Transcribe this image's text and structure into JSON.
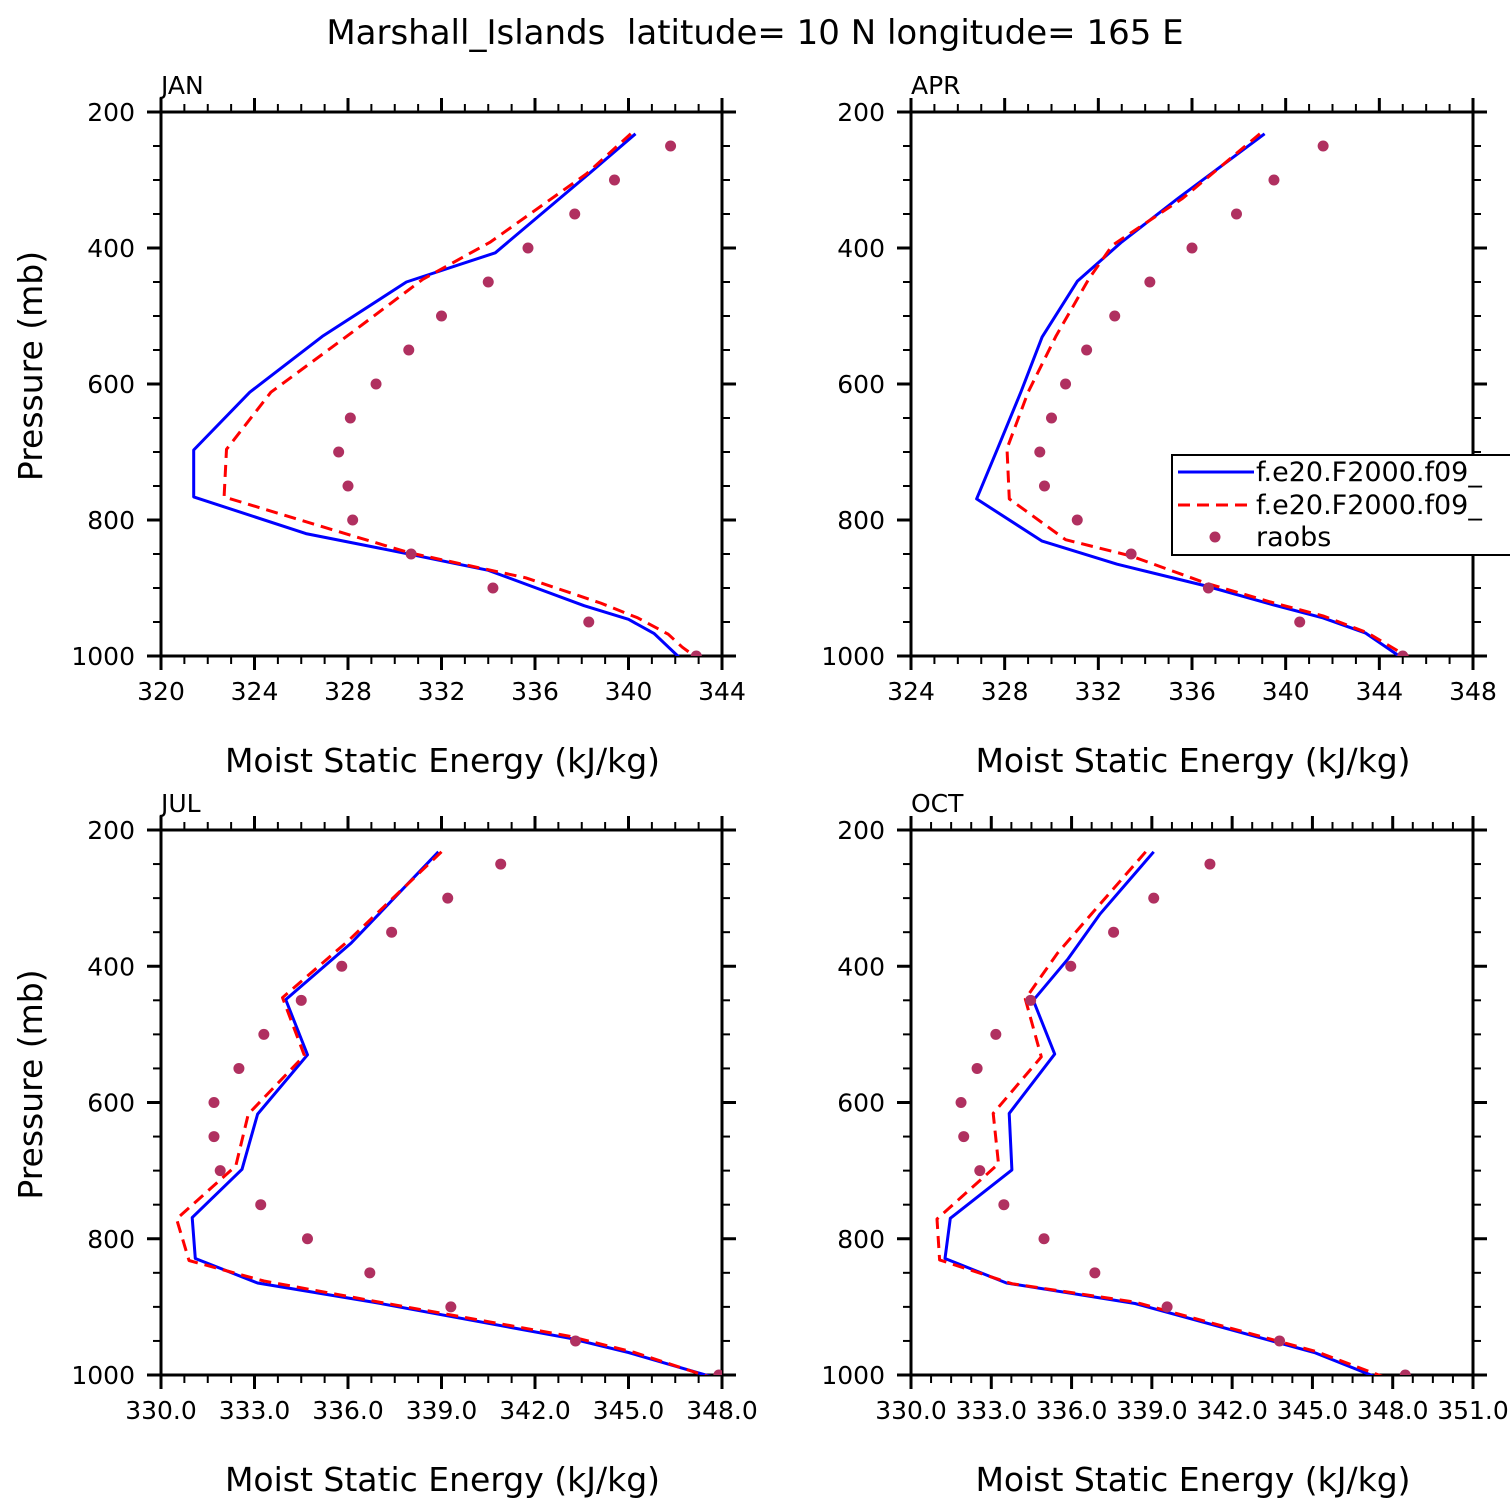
{
  "figure_title": "Marshall_Islands  latitude= 10 N longitude= 165 E",
  "colors": {
    "model1": "#0000ff",
    "model2": "#ff0000",
    "raobs": "#b03060",
    "axis": "#000000"
  },
  "legend": {
    "entries": [
      {
        "label": "f.e20.F2000.f09_",
        "style": "solid-line",
        "color": "#0000ff"
      },
      {
        "label": "f.e20.F2000.f09_",
        "style": "dashed-line",
        "color": "#ff0000"
      },
      {
        "label": "raobs",
        "style": "dot",
        "color": "#b03060"
      }
    ]
  },
  "chart_data": [
    {
      "type": "line",
      "panel_label": "JAN",
      "xlabel": "Moist Static Energy (kJ/kg)",
      "ylabel": "Pressure (mb)",
      "xlim": [
        320,
        344
      ],
      "xticks": [
        320,
        324,
        328,
        332,
        336,
        340,
        344
      ],
      "xtick_labels": [
        "320",
        "324",
        "328",
        "332",
        "336",
        "340",
        "344"
      ],
      "ylim": [
        200,
        1000
      ],
      "yticks": [
        200,
        400,
        600,
        800,
        1000
      ],
      "y_inverted": true,
      "series": [
        {
          "id": "model1",
          "style": "solid",
          "x": [
            340.3,
            338.3,
            334.3,
            330.5,
            326.9,
            323.8,
            321.4,
            321.4,
            326.2,
            330.6,
            334.0,
            338.1,
            340.0,
            341.1,
            342.2
          ],
          "y": [
            232,
            291,
            407,
            450,
            530,
            612,
            697,
            766,
            820,
            850,
            874,
            926,
            946,
            967,
            1003
          ]
        },
        {
          "id": "model2",
          "style": "dashed",
          "x": [
            340.1,
            338.2,
            334.1,
            331.2,
            327.9,
            324.7,
            322.8,
            322.7,
            327.2,
            330.6,
            335.6,
            338.8,
            340.4,
            341.7,
            342.3,
            342.9
          ],
          "y": [
            232,
            291,
            391,
            446,
            531,
            612,
            696,
            766,
            813,
            848,
            885,
            922,
            944,
            968,
            987,
            1002
          ]
        },
        {
          "id": "raobs",
          "style": "dots",
          "x": [
            341.8,
            339.4,
            337.7,
            335.7,
            334.0,
            332.0,
            330.6,
            329.2,
            328.1,
            327.6,
            328.0,
            328.2,
            330.7,
            334.2,
            338.3,
            342.9
          ],
          "y": [
            250,
            300,
            350,
            400,
            450,
            500,
            550,
            600,
            650,
            700,
            750,
            800,
            850,
            900,
            950,
            1000
          ]
        }
      ]
    },
    {
      "type": "line",
      "panel_label": "APR",
      "xlabel": "Moist Static Energy (kJ/kg)",
      "ylabel": "",
      "xlim": [
        324,
        348
      ],
      "xticks": [
        324,
        328,
        332,
        336,
        340,
        344,
        348
      ],
      "xtick_labels": [
        "324",
        "328",
        "332",
        "336",
        "340",
        "344",
        "348"
      ],
      "ylim": [
        200,
        1000
      ],
      "yticks": [
        200,
        400,
        600,
        800,
        1000
      ],
      "y_inverted": true,
      "series": [
        {
          "id": "model1",
          "style": "solid",
          "x": [
            339.1,
            335.4,
            333.0,
            331.1,
            329.6,
            328.7,
            327.7,
            326.8,
            329.6,
            332.8,
            336.6,
            339.5,
            341.6,
            343.4,
            345.1
          ],
          "y": [
            232,
            327,
            391,
            449,
            531,
            611,
            695,
            769,
            831,
            865,
            897,
            925,
            944,
            966,
            1006
          ]
        },
        {
          "id": "model2",
          "style": "dashed",
          "x": [
            338.9,
            335.6,
            332.6,
            331.6,
            330.2,
            329.0,
            328.1,
            328.2,
            330.6,
            333.4,
            336.6,
            339.5,
            341.6,
            343.5,
            345.3
          ],
          "y": [
            232,
            327,
            396,
            445,
            529,
            612,
            695,
            769,
            829,
            853,
            893,
            922,
            941,
            966,
            1003
          ]
        },
        {
          "id": "raobs",
          "style": "dots",
          "x": [
            341.6,
            339.5,
            337.9,
            336.0,
            334.2,
            332.7,
            331.5,
            330.6,
            330.0,
            329.5,
            329.7,
            331.1,
            333.4,
            336.7,
            340.6,
            345.0
          ],
          "y": [
            250,
            300,
            350,
            400,
            450,
            500,
            550,
            600,
            650,
            700,
            750,
            800,
            850,
            900,
            950,
            1000
          ]
        }
      ]
    },
    {
      "type": "line",
      "panel_label": "JUL",
      "xlabel": "Moist Static Energy (kJ/kg)",
      "ylabel": "Pressure (mb)",
      "xlim": [
        330,
        348
      ],
      "xticks": [
        330,
        333,
        336,
        339,
        342,
        345,
        348
      ],
      "xtick_labels": [
        "330.0",
        "333.0",
        "336.0",
        "339.0",
        "342.0",
        "345.0",
        "348.0"
      ],
      "ylim": [
        200,
        1000
      ],
      "yticks": [
        200,
        400,
        600,
        800,
        1000
      ],
      "y_inverted": true,
      "series": [
        {
          "id": "model1",
          "style": "solid",
          "x": [
            338.9,
            336.1,
            334.0,
            334.7,
            333.1,
            332.6,
            331.0,
            331.1,
            333.1,
            336.8,
            343.1,
            345.0,
            347.7
          ],
          "y": [
            232,
            366,
            449,
            530,
            617,
            698,
            769,
            829,
            865,
            893,
            946,
            967,
            1003
          ]
        },
        {
          "id": "model2",
          "style": "dashed",
          "x": [
            339.0,
            336.0,
            333.9,
            334.6,
            332.8,
            332.4,
            330.5,
            330.9,
            333.3,
            337.0,
            343.1,
            345.2,
            347.6
          ],
          "y": [
            232,
            363,
            446,
            531,
            617,
            693,
            771,
            832,
            862,
            893,
            943,
            967,
            1003
          ]
        },
        {
          "id": "raobs",
          "style": "dots",
          "x": [
            340.9,
            339.2,
            337.4,
            335.8,
            334.5,
            333.3,
            332.5,
            331.7,
            331.7,
            331.9,
            333.2,
            334.7,
            336.7,
            339.3,
            343.3,
            347.9
          ],
          "y": [
            250,
            300,
            350,
            400,
            450,
            500,
            550,
            600,
            650,
            700,
            750,
            800,
            850,
            900,
            950,
            1000
          ]
        }
      ]
    },
    {
      "type": "line",
      "panel_label": "OCT",
      "xlabel": "Moist Static Energy (kJ/kg)",
      "ylabel": "",
      "xlim": [
        330.03,
        351.03
      ],
      "xticks": [
        330.03,
        333.03,
        336.03,
        339.03,
        342.03,
        345.03,
        348.03,
        351.03
      ],
      "xtick_labels": [
        "330.0",
        "333.0",
        "336.0",
        "339.0",
        "342.0",
        "345.0",
        "348.0",
        "351.0"
      ],
      "ylim": [
        200,
        1000
      ],
      "yticks": [
        200,
        400,
        600,
        800,
        1000
      ],
      "y_inverted": true,
      "series": [
        {
          "id": "model1",
          "style": "solid",
          "x": [
            339.1,
            337.1,
            335.9,
            334.6,
            335.4,
            333.7,
            333.8,
            331.5,
            331.3,
            333.6,
            338.4,
            345.1,
            347.4
          ],
          "y": [
            232,
            323,
            389,
            450,
            529,
            616,
            699,
            770,
            829,
            865,
            895,
            967,
            1003
          ]
        },
        {
          "id": "model2",
          "style": "dashed",
          "x": [
            338.8,
            336.8,
            335.5,
            334.3,
            334.9,
            333.1,
            333.3,
            331.0,
            331.1,
            333.8,
            338.4,
            345.2,
            347.7
          ],
          "y": [
            232,
            322,
            381,
            448,
            533,
            616,
            690,
            771,
            831,
            866,
            893,
            966,
            1003
          ]
        },
        {
          "id": "raobs",
          "style": "dots",
          "x": [
            341.2,
            339.1,
            337.6,
            336.0,
            334.5,
            333.2,
            332.5,
            331.9,
            332.0,
            332.6,
            333.5,
            335.0,
            336.9,
            339.6,
            343.8,
            348.5
          ],
          "y": [
            250,
            300,
            350,
            400,
            450,
            500,
            550,
            600,
            650,
            700,
            750,
            800,
            850,
            900,
            950,
            1000
          ]
        }
      ]
    }
  ]
}
